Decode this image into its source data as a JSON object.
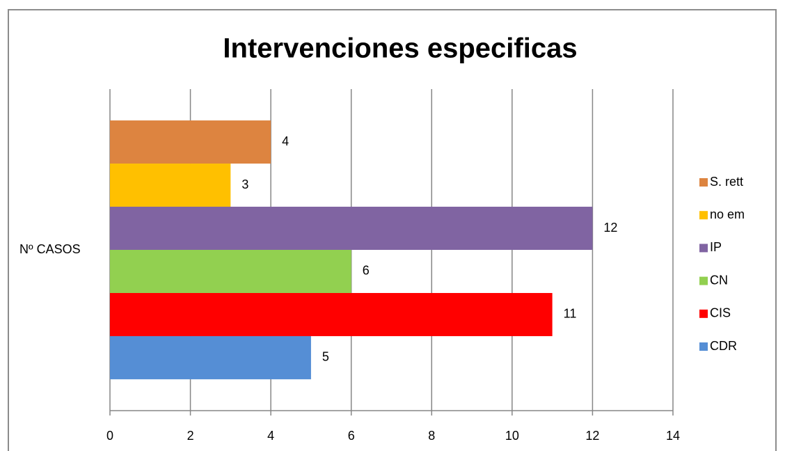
{
  "chart_data": {
    "type": "bar",
    "orientation": "horizontal",
    "title": "Intervenciones especificas",
    "categories": [
      "Nº CASOS"
    ],
    "series": [
      {
        "name": "S. rett",
        "color": "#dd8440",
        "values": [
          4
        ]
      },
      {
        "name": "no em",
        "color": "#ffc000",
        "values": [
          3
        ]
      },
      {
        "name": "IP",
        "color": "#8064a2",
        "values": [
          12
        ]
      },
      {
        "name": "CN",
        "color": "#92d050",
        "values": [
          6
        ]
      },
      {
        "name": "CIS",
        "color": "#ff0000",
        "values": [
          11
        ]
      },
      {
        "name": "CDR",
        "color": "#558ed5",
        "values": [
          5
        ]
      }
    ],
    "xlim": [
      0,
      14
    ],
    "xticks": [
      0,
      2,
      4,
      6,
      8,
      10,
      12,
      14
    ],
    "grid": true,
    "legend": "right"
  }
}
